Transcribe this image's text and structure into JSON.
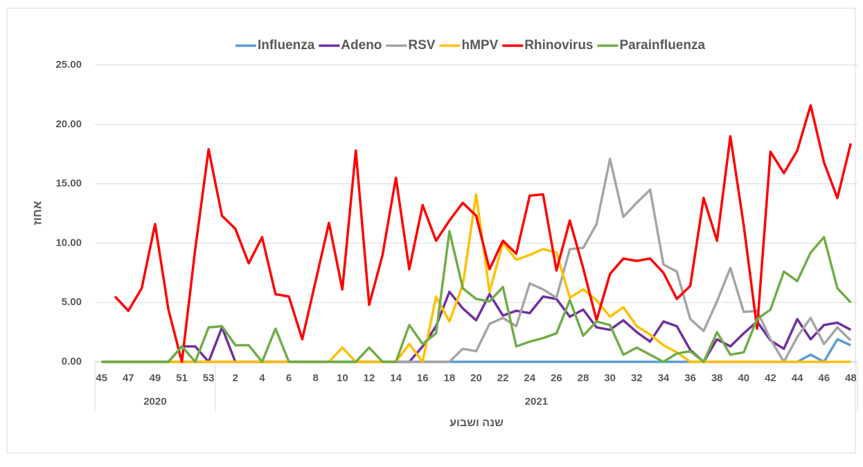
{
  "chart_data": {
    "type": "line",
    "y_axis_title": "אחוז",
    "x_axis_title": "שנה ושבוע",
    "grid": true,
    "legend_position": "top",
    "groups": [
      {
        "label": "2020",
        "count": 9
      },
      {
        "label": "2021",
        "count": 48
      }
    ],
    "categories": [
      "45",
      null,
      "47",
      null,
      "49",
      null,
      "51",
      null,
      "53",
      null,
      "2",
      null,
      "4",
      null,
      "6",
      null,
      "8",
      null,
      "10",
      null,
      "12",
      null,
      "14",
      null,
      "16",
      null,
      "18",
      null,
      "20",
      null,
      "22",
      null,
      "24",
      null,
      "26",
      null,
      "28",
      null,
      "30",
      null,
      "32",
      null,
      "34",
      null,
      "36",
      null,
      "38",
      null,
      "40",
      null,
      "42",
      null,
      "44",
      null,
      "46",
      null,
      "48"
    ],
    "ylim": [
      0,
      25
    ],
    "yticks": [
      {
        "value": 0,
        "label": "0.00"
      },
      {
        "value": 5,
        "label": "5.00"
      },
      {
        "value": 10,
        "label": "10.00"
      },
      {
        "value": 15,
        "label": "15.00"
      },
      {
        "value": 20,
        "label": "20.00"
      },
      {
        "value": 25,
        "label": "25.00"
      }
    ],
    "series": [
      {
        "name": "Influenza",
        "color": "#5b9bd5",
        "values": [
          0,
          0,
          0,
          0,
          0,
          0,
          0,
          0,
          0,
          0,
          0,
          0,
          0,
          0,
          0,
          0,
          0,
          0,
          0,
          0,
          0,
          0,
          0,
          0,
          0,
          0,
          0,
          0,
          0,
          0,
          0,
          0,
          0,
          0,
          0,
          0,
          0,
          0,
          0,
          0,
          0,
          0,
          0,
          0,
          0,
          0,
          0,
          0,
          0,
          0,
          0,
          0,
          0,
          0.6,
          0,
          1.9,
          1.4
        ]
      },
      {
        "name": "Adeno",
        "color": "#7030a0",
        "values": [
          0,
          0,
          0,
          0,
          0,
          0,
          1.3,
          1.3,
          0,
          2.9,
          0,
          0,
          0,
          0,
          0,
          0,
          0,
          0,
          0,
          0,
          0,
          0,
          0,
          0,
          1.3,
          3.0,
          5.9,
          4.5,
          3.5,
          5.7,
          3.9,
          4.3,
          4.1,
          5.5,
          5.3,
          3.8,
          4.4,
          2.9,
          2.7,
          3.5,
          2.5,
          1.7,
          3.4,
          3.0,
          1.0,
          0,
          1.9,
          1.3,
          2.4,
          3.4,
          1.8,
          1.1,
          3.6,
          1.9,
          3.1,
          3.3,
          2.7
        ]
      },
      {
        "name": "RSV",
        "color": "#a5a5a5",
        "values": [
          0,
          0,
          0,
          0,
          0,
          0,
          0,
          0,
          0,
          0,
          0,
          0,
          0,
          0,
          0,
          0,
          0,
          0,
          0,
          0,
          0,
          0,
          0,
          0,
          0,
          0,
          0,
          1.1,
          0.9,
          3.2,
          3.7,
          3.0,
          6.6,
          6.1,
          5.4,
          9.5,
          9.6,
          11.6,
          17.1,
          12.2,
          13.4,
          14.5,
          8.2,
          7.6,
          3.6,
          2.6,
          5.1,
          7.9,
          4.2,
          4.3,
          1.9,
          0,
          2.1,
          3.7,
          1.5,
          2.9,
          1.8
        ]
      },
      {
        "name": "hMPV",
        "color": "#ffc000",
        "values": [
          0,
          0,
          0,
          0,
          0,
          0,
          0,
          0,
          0,
          0,
          0,
          0,
          0,
          0,
          0,
          0,
          0,
          0,
          1.2,
          0,
          0,
          0,
          0,
          1.5,
          0,
          5.5,
          3.4,
          6.5,
          14.1,
          5.9,
          10.0,
          8.6,
          9.0,
          9.5,
          9.2,
          5.4,
          6.1,
          5.2,
          3.8,
          4.6,
          3.0,
          2.3,
          1.4,
          0.8,
          0,
          0,
          0,
          0,
          0,
          0,
          0,
          0,
          0,
          0,
          0,
          0,
          0
        ]
      },
      {
        "name": "Rhinovirus",
        "color": "#ff0000",
        "values": [
          null,
          5.5,
          4.3,
          6.2,
          11.6,
          4.4,
          0,
          9.5,
          17.9,
          12.3,
          11.2,
          8.3,
          10.5,
          5.7,
          5.5,
          1.9,
          6.8,
          11.7,
          6.1,
          17.8,
          4.8,
          9.0,
          15.5,
          7.8,
          13.2,
          10.2,
          11.9,
          13.4,
          12.3,
          7.8,
          10.2,
          9.1,
          14.0,
          14.1,
          7.7,
          11.9,
          7.9,
          3.5,
          7.4,
          8.7,
          8.5,
          8.7,
          7.5,
          5.3,
          6.4,
          13.8,
          10.2,
          19.0,
          11.5,
          2.8,
          17.7,
          15.9,
          17.8,
          21.6,
          16.8,
          13.8,
          18.4
        ]
      },
      {
        "name": "Parainfluenza",
        "color": "#70ad47",
        "values": [
          0,
          0,
          0,
          0,
          0,
          0,
          1.3,
          0,
          2.9,
          3.0,
          1.4,
          1.4,
          0,
          2.8,
          0,
          0,
          0,
          0,
          0,
          0,
          1.2,
          0,
          0,
          3.1,
          1.5,
          2.4,
          11.0,
          6.2,
          5.3,
          5.1,
          6.3,
          1.3,
          1.7,
          2.0,
          2.4,
          5.2,
          2.2,
          3.4,
          3.1,
          0.6,
          1.2,
          0.6,
          0,
          0.7,
          0.9,
          0,
          2.5,
          0.6,
          0.8,
          3.6,
          4.4,
          7.6,
          6.8,
          9.2,
          10.5,
          6.2,
          5.0
        ]
      }
    ]
  }
}
